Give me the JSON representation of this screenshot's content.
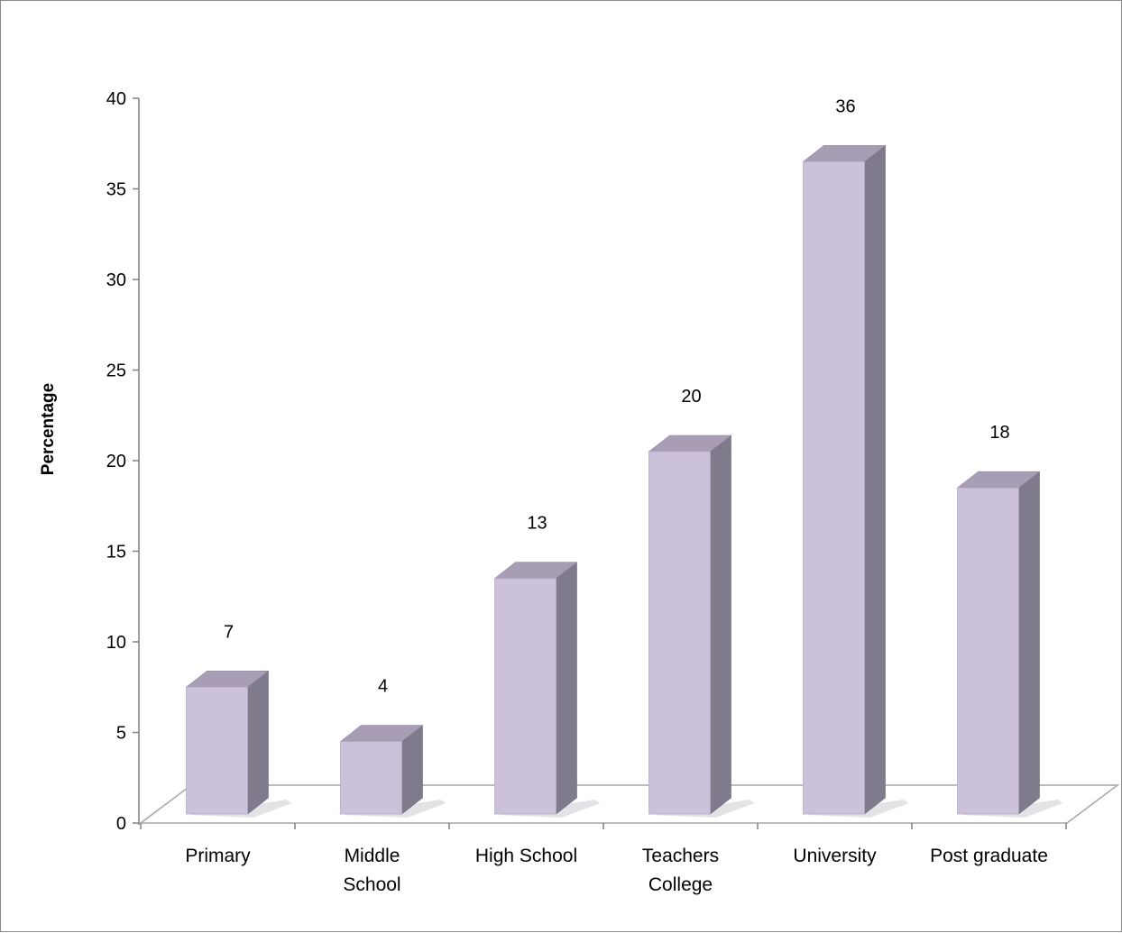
{
  "chart_data": {
    "type": "bar",
    "title": "",
    "xlabel": "",
    "ylabel": "Percentage",
    "ylim": [
      0,
      40
    ],
    "yticks": [
      0,
      5,
      10,
      15,
      20,
      25,
      30,
      35,
      40
    ],
    "categories": [
      [
        "Primary"
      ],
      [
        "Middle",
        "School"
      ],
      [
        "High School"
      ],
      [
        "Teachers",
        "College"
      ],
      [
        "University"
      ],
      [
        "Post graduate"
      ]
    ],
    "values": [
      7,
      4,
      13,
      20,
      36,
      18
    ],
    "data_labels": [
      "7",
      "4",
      "13",
      "20",
      "36",
      "18"
    ],
    "style": "3d-column",
    "grid": false,
    "legend": "none",
    "colors": {
      "bar_front": "#ccc1da",
      "bar_side": "#7f7a8c",
      "bar_top": "#a79db4",
      "floor_line": "#a6a6a6",
      "axis": "#808080"
    }
  }
}
